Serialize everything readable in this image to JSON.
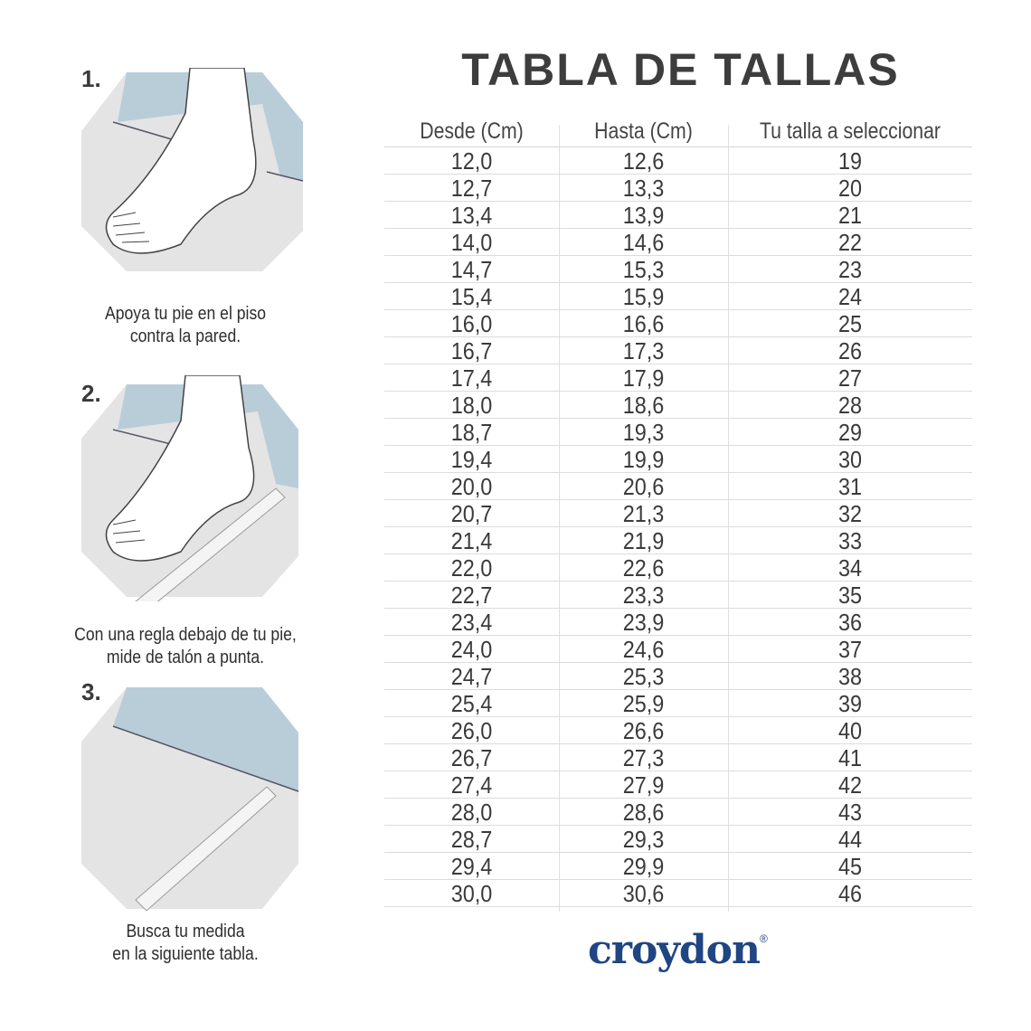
{
  "title": "TABLA DE TALLAS",
  "steps": [
    {
      "number": "1.",
      "caption_lines": [
        "Apoya tu pie en el piso",
        "contra la pared."
      ]
    },
    {
      "number": "2.",
      "caption_lines": [
        "Con una regla debajo de tu pie,",
        "mide de talón a punta."
      ]
    },
    {
      "number": "3.",
      "caption_lines": [
        "Busca tu medida",
        "en la siguiente tabla."
      ]
    }
  ],
  "table": {
    "headers": [
      "Desde (Cm)",
      "Hasta (Cm)",
      "Tu talla a seleccionar"
    ],
    "rows": [
      [
        "12,0",
        "12,6",
        "19"
      ],
      [
        "12,7",
        "13,3",
        "20"
      ],
      [
        "13,4",
        "13,9",
        "21"
      ],
      [
        "14,0",
        "14,6",
        "22"
      ],
      [
        "14,7",
        "15,3",
        "23"
      ],
      [
        "15,4",
        "15,9",
        "24"
      ],
      [
        "16,0",
        "16,6",
        "25"
      ],
      [
        "16,7",
        "17,3",
        "26"
      ],
      [
        "17,4",
        "17,9",
        "27"
      ],
      [
        "18,0",
        "18,6",
        "28"
      ],
      [
        "18,7",
        "19,3",
        "29"
      ],
      [
        "19,4",
        "19,9",
        "30"
      ],
      [
        "20,0",
        "20,6",
        "31"
      ],
      [
        "20,7",
        "21,3",
        "32"
      ],
      [
        "21,4",
        "21,9",
        "33"
      ],
      [
        "22,0",
        "22,6",
        "34"
      ],
      [
        "22,7",
        "23,3",
        "35"
      ],
      [
        "23,4",
        "23,9",
        "36"
      ],
      [
        "24,0",
        "24,6",
        "37"
      ],
      [
        "24,7",
        "25,3",
        "38"
      ],
      [
        "25,4",
        "25,9",
        "39"
      ],
      [
        "26,0",
        "26,6",
        "40"
      ],
      [
        "26,7",
        "27,3",
        "41"
      ],
      [
        "27,4",
        "27,9",
        "42"
      ],
      [
        "28,0",
        "28,6",
        "43"
      ],
      [
        "28,7",
        "29,3",
        "44"
      ],
      [
        "29,4",
        "29,9",
        "45"
      ],
      [
        "30,0",
        "30,6",
        "46"
      ]
    ]
  },
  "brand": {
    "name": "croydon",
    "mark": "®"
  },
  "colors": {
    "brand": "#1f4583",
    "wall": "#b9cdd9",
    "floor": "#e4e4e4",
    "text": "#3a3a3a"
  }
}
